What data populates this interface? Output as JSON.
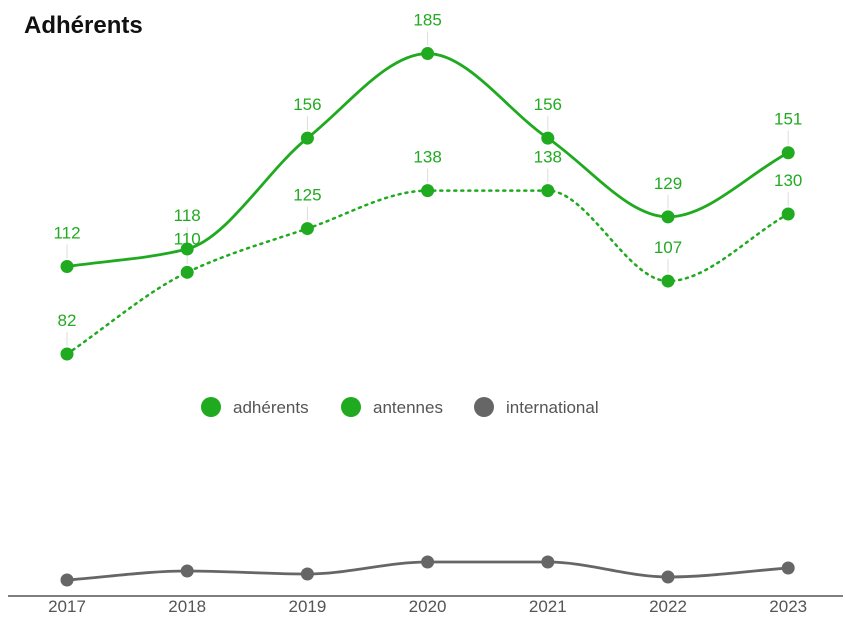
{
  "chart_data": {
    "type": "line",
    "title": "Adhérents",
    "categories": [
      "2017",
      "2018",
      "2019",
      "2020",
      "2021",
      "2022",
      "2023"
    ],
    "series": [
      {
        "name": "adhérents",
        "color": "#1faa1f",
        "style": "solid",
        "values": [
          112,
          118,
          156,
          185,
          156,
          129,
          151
        ],
        "labels": [
          "112",
          "118",
          "156",
          "185",
          "156",
          "129",
          "151"
        ]
      },
      {
        "name": "antennes",
        "color": "#1faa1f",
        "style": "dotted",
        "values": [
          82,
          110,
          125,
          138,
          138,
          107,
          130
        ],
        "labels": [
          "82",
          "110",
          "125",
          "138",
          "138",
          "107",
          "130"
        ]
      },
      {
        "name": "international",
        "color": "#666666",
        "style": "solid",
        "values": [
          5,
          8,
          7,
          11,
          11,
          6,
          9
        ]
      }
    ],
    "legend_position": "middle-center",
    "grid": false
  }
}
